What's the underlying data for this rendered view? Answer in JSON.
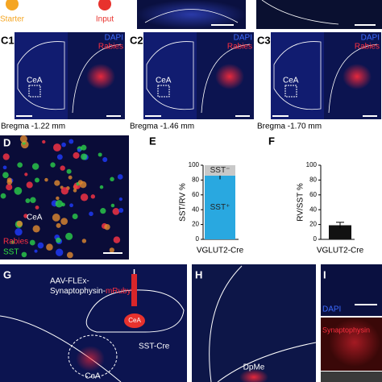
{
  "top": {
    "starter": "Starter",
    "input": "Input"
  },
  "c_panels": [
    {
      "label": "C1",
      "dapi": "DAPI",
      "rabies": "Rabies",
      "region": "CeA",
      "bregma": "Bregma -1.22 mm"
    },
    {
      "label": "C2",
      "dapi": "DAPI",
      "rabies": "Rabies",
      "region": "CeA",
      "bregma": "Bregma -1.46 mm"
    },
    {
      "label": "C3",
      "dapi": "DAPI",
      "rabies": "Rabies",
      "region": "CeA",
      "bregma": "Bregma -1.70 mm"
    }
  ],
  "panel_d": {
    "label": "D",
    "region": "CeA",
    "rabies": "Rabies",
    "sst": "SST"
  },
  "chart_data": [
    {
      "type": "bar",
      "panel_label": "E",
      "y_label": "SST/RV %",
      "categories": [
        "VGLUT2-Cre"
      ],
      "stacked": true,
      "series": [
        {
          "name": "SST⁺",
          "color": "#29a8e0",
          "values": [
            86
          ],
          "errors": [
            5
          ]
        },
        {
          "name": "SST⁻",
          "color": "#c8c8c8",
          "values": [
            14
          ]
        }
      ],
      "ylim": [
        0,
        100
      ],
      "yticks": [
        0,
        20,
        40,
        60,
        80,
        100
      ]
    },
    {
      "type": "bar",
      "panel_label": "F",
      "y_label": "RV/SST %",
      "categories": [
        "VGLUT2-Cre"
      ],
      "series": [
        {
          "color": "#111111",
          "values": [
            19
          ],
          "errors": [
            4
          ]
        }
      ],
      "ylim": [
        0,
        100
      ],
      "yticks": [
        0,
        20,
        40,
        60,
        80,
        100
      ]
    }
  ],
  "panel_g": {
    "label": "G",
    "virus_line1": "AAV-FLEx-",
    "virus_line2a": "Synaptophysin-",
    "virus_line2b": "mRuby",
    "injection": "CeA",
    "mouse": "SST-Cre",
    "region": "CeA"
  },
  "panel_h": {
    "label": "H",
    "region": "DpMe"
  },
  "panel_i": {
    "label": "I",
    "dapi": "DAPI",
    "synaptophysin": "Synaptophysin"
  }
}
